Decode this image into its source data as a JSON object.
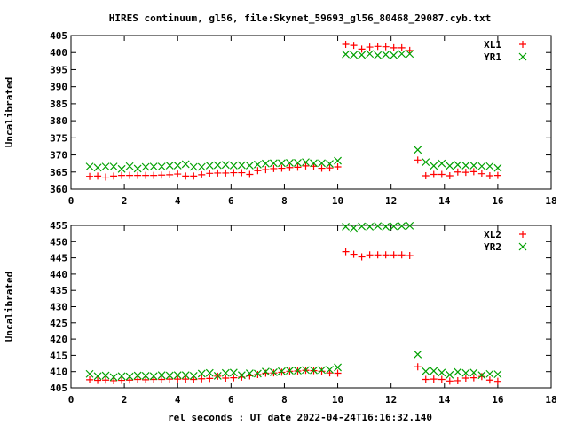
{
  "chart_data": [
    {
      "type": "scatter",
      "title": "HIRES continuum, gl56, file:Skynet_59693_gl56_80468_29087.cyb.txt",
      "ylabel": "Uncalibrated",
      "xlabel": "",
      "xlim": [
        0,
        18
      ],
      "ylim": [
        360,
        405
      ],
      "xticks": [
        0,
        2,
        4,
        6,
        8,
        10,
        12,
        14,
        16,
        18
      ],
      "yticks": [
        360,
        365,
        370,
        375,
        380,
        385,
        390,
        395,
        400,
        405
      ],
      "grid": false,
      "legend": "top-right",
      "series": [
        {
          "name": "XL1",
          "marker": "plus",
          "color": "#ff0000",
          "x": [
            0.7,
            1.0,
            1.3,
            1.6,
            1.9,
            2.2,
            2.5,
            2.8,
            3.1,
            3.4,
            3.7,
            4.0,
            4.3,
            4.6,
            4.9,
            5.2,
            5.5,
            5.8,
            6.1,
            6.4,
            6.7,
            7.0,
            7.3,
            7.6,
            7.9,
            8.2,
            8.5,
            8.8,
            9.1,
            9.4,
            9.7,
            10.0,
            10.3,
            10.6,
            10.9,
            11.2,
            11.5,
            11.8,
            12.1,
            12.4,
            12.7,
            13.0,
            13.3,
            13.6,
            13.9,
            14.2,
            14.5,
            14.8,
            15.1,
            15.4,
            15.7,
            16.0
          ],
          "y": [
            363.7,
            363.8,
            363.5,
            363.8,
            364.0,
            364.0,
            364.0,
            364.0,
            364.0,
            364.1,
            364.2,
            364.4,
            363.8,
            363.8,
            364.2,
            364.6,
            364.7,
            364.7,
            364.8,
            364.8,
            364.3,
            365.4,
            365.7,
            366.0,
            366.1,
            366.3,
            366.4,
            366.8,
            366.7,
            366.1,
            366.2,
            366.5,
            402.4,
            402.1,
            401.0,
            401.6,
            401.8,
            401.7,
            401.4,
            401.4,
            400.6,
            368.5,
            363.9,
            364.3,
            364.3,
            363.9,
            365.0,
            364.9,
            365.1,
            364.5,
            363.9,
            364.0
          ]
        },
        {
          "name": "YR1",
          "marker": "cross",
          "color": "#00a000",
          "x": [
            0.7,
            1.0,
            1.3,
            1.6,
            1.9,
            2.2,
            2.5,
            2.8,
            3.1,
            3.4,
            3.7,
            4.0,
            4.3,
            4.6,
            4.9,
            5.2,
            5.5,
            5.8,
            6.1,
            6.4,
            6.7,
            7.0,
            7.3,
            7.6,
            7.9,
            8.2,
            8.5,
            8.8,
            9.1,
            9.4,
            9.7,
            10.0,
            10.3,
            10.6,
            10.9,
            11.2,
            11.5,
            11.8,
            12.1,
            12.4,
            12.7,
            13.0,
            13.3,
            13.6,
            13.9,
            14.2,
            14.5,
            14.8,
            15.1,
            15.4,
            15.7,
            16.0
          ],
          "y": [
            366.6,
            366.3,
            366.6,
            366.6,
            365.9,
            366.7,
            366.0,
            366.5,
            366.6,
            366.6,
            366.9,
            366.9,
            367.3,
            366.5,
            366.5,
            366.9,
            367.0,
            367.1,
            366.9,
            367.0,
            366.9,
            367.2,
            367.5,
            367.6,
            367.6,
            367.7,
            367.7,
            367.9,
            367.6,
            367.6,
            367.4,
            368.3,
            399.5,
            399.3,
            399.3,
            399.6,
            399.2,
            399.4,
            399.2,
            399.6,
            399.6,
            371.5,
            367.9,
            366.8,
            367.5,
            366.8,
            367.1,
            366.9,
            366.9,
            366.7,
            366.7,
            366.2
          ]
        }
      ]
    },
    {
      "type": "scatter",
      "title": "",
      "ylabel": "Uncalibrated",
      "xlabel": "rel seconds : UT date 2022-04-24T16:16:32.140",
      "xlim": [
        0,
        18
      ],
      "ylim": [
        405,
        455
      ],
      "xticks": [
        0,
        2,
        4,
        6,
        8,
        10,
        12,
        14,
        16,
        18
      ],
      "yticks": [
        405,
        410,
        415,
        420,
        425,
        430,
        435,
        440,
        445,
        450,
        455
      ],
      "grid": false,
      "legend": "top-right",
      "series": [
        {
          "name": "XL2",
          "marker": "plus",
          "color": "#ff0000",
          "x": [
            0.7,
            1.0,
            1.3,
            1.6,
            1.9,
            2.2,
            2.5,
            2.8,
            3.1,
            3.4,
            3.7,
            4.0,
            4.3,
            4.6,
            4.9,
            5.2,
            5.5,
            5.8,
            6.1,
            6.4,
            6.7,
            7.0,
            7.3,
            7.6,
            7.9,
            8.2,
            8.5,
            8.8,
            9.1,
            9.4,
            9.7,
            10.0,
            10.3,
            10.6,
            10.9,
            11.2,
            11.5,
            11.8,
            12.1,
            12.4,
            12.7,
            13.0,
            13.3,
            13.6,
            13.9,
            14.2,
            14.5,
            14.8,
            15.1,
            15.4,
            15.7,
            16.0
          ],
          "y": [
            407.5,
            407.3,
            407.4,
            407.2,
            407.3,
            407.4,
            407.6,
            407.5,
            407.6,
            407.6,
            407.7,
            407.7,
            407.7,
            407.6,
            407.8,
            407.9,
            408.6,
            408.0,
            408.1,
            408.3,
            408.7,
            409.1,
            409.5,
            409.6,
            409.8,
            410.1,
            410.2,
            410.4,
            410.3,
            410.1,
            409.6,
            409.5,
            446.9,
            446.1,
            445.3,
            445.9,
            445.9,
            445.9,
            445.9,
            445.9,
            445.7,
            411.5,
            407.6,
            407.7,
            407.6,
            407.1,
            407.2,
            408.0,
            408.1,
            408.5,
            407.4,
            407.0
          ]
        },
        {
          "name": "YR2",
          "marker": "cross",
          "color": "#00a000",
          "x": [
            0.7,
            1.0,
            1.3,
            1.6,
            1.9,
            2.2,
            2.5,
            2.8,
            3.1,
            3.4,
            3.7,
            4.0,
            4.3,
            4.6,
            4.9,
            5.2,
            5.5,
            5.8,
            6.1,
            6.4,
            6.7,
            7.0,
            7.3,
            7.6,
            7.9,
            8.2,
            8.5,
            8.8,
            9.1,
            9.4,
            9.7,
            10.0,
            10.3,
            10.6,
            10.9,
            11.2,
            11.5,
            11.8,
            12.1,
            12.4,
            12.7,
            13.0,
            13.3,
            13.6,
            13.9,
            14.2,
            14.5,
            14.8,
            15.1,
            15.4,
            15.7,
            16.0
          ],
          "y": [
            409.3,
            408.6,
            408.8,
            408.3,
            408.6,
            408.5,
            408.8,
            408.7,
            408.6,
            408.9,
            408.8,
            408.9,
            408.9,
            408.7,
            409.4,
            409.6,
            408.7,
            409.6,
            409.7,
            408.9,
            409.5,
            409.4,
            410.0,
            409.8,
            410.1,
            410.3,
            410.3,
            410.5,
            410.4,
            410.5,
            410.6,
            411.3,
            454.6,
            454.2,
            454.7,
            454.6,
            454.8,
            454.6,
            454.7,
            454.8,
            454.9,
            415.3,
            410.1,
            410.2,
            409.7,
            409.0,
            409.9,
            409.6,
            409.7,
            408.9,
            409.3,
            409.2
          ]
        }
      ]
    }
  ]
}
